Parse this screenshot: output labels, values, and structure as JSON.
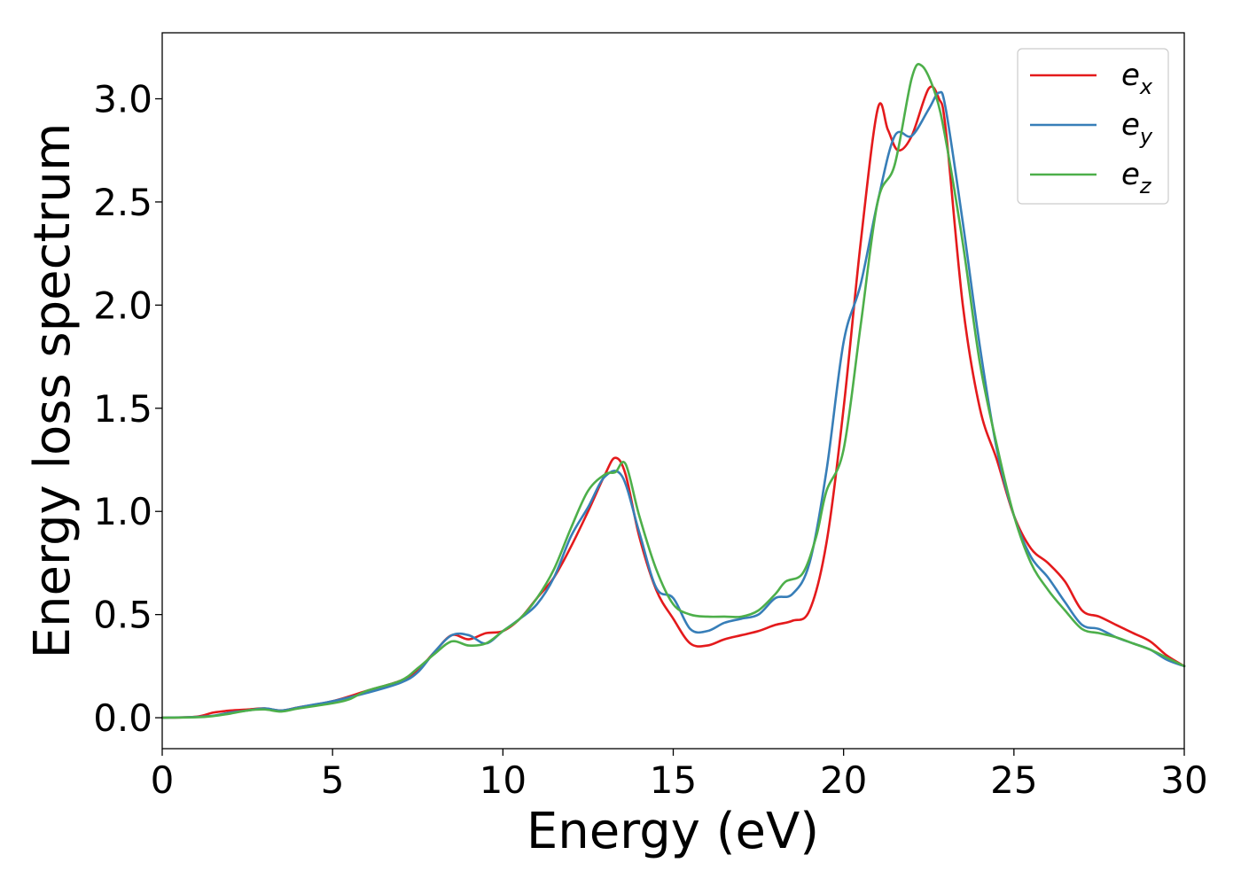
{
  "chart_data": {
    "type": "line",
    "title": "",
    "xlabel": "Energy (eV)",
    "ylabel": "Energy loss spectrum",
    "xlim": [
      0,
      30
    ],
    "ylim": [
      -0.15,
      3.32
    ],
    "xticks": [
      0,
      5,
      10,
      15,
      20,
      25,
      30
    ],
    "xtick_labels": [
      "0",
      "5",
      "10",
      "15",
      "20",
      "25",
      "30"
    ],
    "yticks": [
      0.0,
      0.5,
      1.0,
      1.5,
      2.0,
      2.5,
      3.0
    ],
    "ytick_labels": [
      "0.0",
      "0.5",
      "1.0",
      "1.5",
      "2.0",
      "2.5",
      "3.0"
    ],
    "grid": false,
    "legend_position": "top-right",
    "series": [
      {
        "name": "e",
        "subscript": "x",
        "color": "#e41a1c",
        "points": [
          [
            0,
            0
          ],
          [
            1,
            0.005
          ],
          [
            1.5,
            0.025
          ],
          [
            2,
            0.035
          ],
          [
            2.5,
            0.04
          ],
          [
            3,
            0.045
          ],
          [
            3.5,
            0.035
          ],
          [
            4,
            0.05
          ],
          [
            5,
            0.08
          ],
          [
            6,
            0.13
          ],
          [
            7,
            0.18
          ],
          [
            7.5,
            0.23
          ],
          [
            8,
            0.32
          ],
          [
            8.5,
            0.4
          ],
          [
            9,
            0.38
          ],
          [
            9.5,
            0.41
          ],
          [
            10,
            0.42
          ],
          [
            10.5,
            0.48
          ],
          [
            11,
            0.58
          ],
          [
            11.5,
            0.68
          ],
          [
            12,
            0.83
          ],
          [
            12.5,
            1.0
          ],
          [
            13,
            1.18
          ],
          [
            13.3,
            1.26
          ],
          [
            13.6,
            1.18
          ],
          [
            14,
            0.88
          ],
          [
            14.5,
            0.62
          ],
          [
            15,
            0.48
          ],
          [
            15.5,
            0.36
          ],
          [
            16,
            0.35
          ],
          [
            16.5,
            0.38
          ],
          [
            17,
            0.4
          ],
          [
            17.5,
            0.42
          ],
          [
            18,
            0.45
          ],
          [
            18.5,
            0.47
          ],
          [
            19,
            0.52
          ],
          [
            19.5,
            0.85
          ],
          [
            20,
            1.5
          ],
          [
            20.5,
            2.3
          ],
          [
            21,
            2.95
          ],
          [
            21.3,
            2.85
          ],
          [
            21.6,
            2.75
          ],
          [
            22,
            2.82
          ],
          [
            22.5,
            3.05
          ],
          [
            22.8,
            3.0
          ],
          [
            23,
            2.85
          ],
          [
            23.5,
            2.0
          ],
          [
            24,
            1.5
          ],
          [
            24.5,
            1.25
          ],
          [
            25,
            0.98
          ],
          [
            25.5,
            0.82
          ],
          [
            26,
            0.75
          ],
          [
            26.5,
            0.66
          ],
          [
            27,
            0.52
          ],
          [
            27.5,
            0.49
          ],
          [
            28,
            0.45
          ],
          [
            28.5,
            0.41
          ],
          [
            29,
            0.37
          ],
          [
            29.5,
            0.3
          ],
          [
            30,
            0.25
          ]
        ]
      },
      {
        "name": "e",
        "subscript": "y",
        "color": "#377eb8",
        "points": [
          [
            0,
            0
          ],
          [
            1,
            0.004
          ],
          [
            1.5,
            0.01
          ],
          [
            2,
            0.025
          ],
          [
            2.5,
            0.035
          ],
          [
            3,
            0.045
          ],
          [
            3.5,
            0.035
          ],
          [
            4,
            0.05
          ],
          [
            4.5,
            0.065
          ],
          [
            5,
            0.08
          ],
          [
            6,
            0.12
          ],
          [
            7,
            0.17
          ],
          [
            7.5,
            0.22
          ],
          [
            8,
            0.32
          ],
          [
            8.5,
            0.4
          ],
          [
            9,
            0.4
          ],
          [
            9.5,
            0.36
          ],
          [
            10,
            0.42
          ],
          [
            10.5,
            0.48
          ],
          [
            11,
            0.55
          ],
          [
            11.5,
            0.68
          ],
          [
            12,
            0.88
          ],
          [
            12.5,
            1.02
          ],
          [
            13,
            1.17
          ],
          [
            13.5,
            1.17
          ],
          [
            14,
            0.9
          ],
          [
            14.5,
            0.63
          ],
          [
            15,
            0.58
          ],
          [
            15.5,
            0.43
          ],
          [
            16,
            0.42
          ],
          [
            16.5,
            0.46
          ],
          [
            17,
            0.48
          ],
          [
            17.5,
            0.5
          ],
          [
            18,
            0.58
          ],
          [
            18.5,
            0.6
          ],
          [
            19,
            0.75
          ],
          [
            19.5,
            1.2
          ],
          [
            20,
            1.82
          ],
          [
            20.5,
            2.1
          ],
          [
            21,
            2.5
          ],
          [
            21.5,
            2.82
          ],
          [
            22,
            2.82
          ],
          [
            22.5,
            2.95
          ],
          [
            22.8,
            3.03
          ],
          [
            23,
            2.95
          ],
          [
            23.5,
            2.4
          ],
          [
            24,
            1.8
          ],
          [
            24.5,
            1.3
          ],
          [
            25,
            0.98
          ],
          [
            25.5,
            0.78
          ],
          [
            26,
            0.68
          ],
          [
            26.5,
            0.56
          ],
          [
            27,
            0.45
          ],
          [
            27.5,
            0.43
          ],
          [
            28,
            0.39
          ],
          [
            28.5,
            0.36
          ],
          [
            29,
            0.33
          ],
          [
            29.5,
            0.28
          ],
          [
            30,
            0.25
          ]
        ]
      },
      {
        "name": "e",
        "subscript": "z",
        "color": "#4daf4a",
        "points": [
          [
            0,
            0
          ],
          [
            1,
            0.002
          ],
          [
            1.5,
            0.008
          ],
          [
            2,
            0.02
          ],
          [
            2.5,
            0.035
          ],
          [
            3,
            0.04
          ],
          [
            3.5,
            0.03
          ],
          [
            4,
            0.045
          ],
          [
            5,
            0.07
          ],
          [
            5.5,
            0.09
          ],
          [
            6,
            0.13
          ],
          [
            7,
            0.18
          ],
          [
            7.5,
            0.24
          ],
          [
            8,
            0.31
          ],
          [
            8.5,
            0.37
          ],
          [
            9,
            0.35
          ],
          [
            9.5,
            0.36
          ],
          [
            10,
            0.42
          ],
          [
            10.5,
            0.48
          ],
          [
            11,
            0.58
          ],
          [
            11.5,
            0.72
          ],
          [
            12,
            0.92
          ],
          [
            12.5,
            1.1
          ],
          [
            13,
            1.18
          ],
          [
            13.3,
            1.19
          ],
          [
            13.6,
            1.23
          ],
          [
            14,
            0.98
          ],
          [
            14.5,
            0.72
          ],
          [
            15,
            0.55
          ],
          [
            15.5,
            0.5
          ],
          [
            16,
            0.49
          ],
          [
            16.5,
            0.49
          ],
          [
            17,
            0.49
          ],
          [
            17.5,
            0.52
          ],
          [
            18,
            0.6
          ],
          [
            18.3,
            0.66
          ],
          [
            18.8,
            0.7
          ],
          [
            19.2,
            0.88
          ],
          [
            19.5,
            1.1
          ],
          [
            20,
            1.3
          ],
          [
            20.5,
            1.9
          ],
          [
            21,
            2.5
          ],
          [
            21.5,
            2.68
          ],
          [
            22,
            3.1
          ],
          [
            22.3,
            3.16
          ],
          [
            22.7,
            3.02
          ],
          [
            23,
            2.8
          ],
          [
            23.5,
            2.3
          ],
          [
            24,
            1.72
          ],
          [
            24.5,
            1.32
          ],
          [
            25,
            0.98
          ],
          [
            25.5,
            0.75
          ],
          [
            26,
            0.62
          ],
          [
            26.5,
            0.52
          ],
          [
            27,
            0.43
          ],
          [
            27.5,
            0.41
          ],
          [
            28,
            0.39
          ],
          [
            28.5,
            0.36
          ],
          [
            29,
            0.33
          ],
          [
            29.5,
            0.29
          ],
          [
            30,
            0.25
          ]
        ]
      }
    ]
  }
}
